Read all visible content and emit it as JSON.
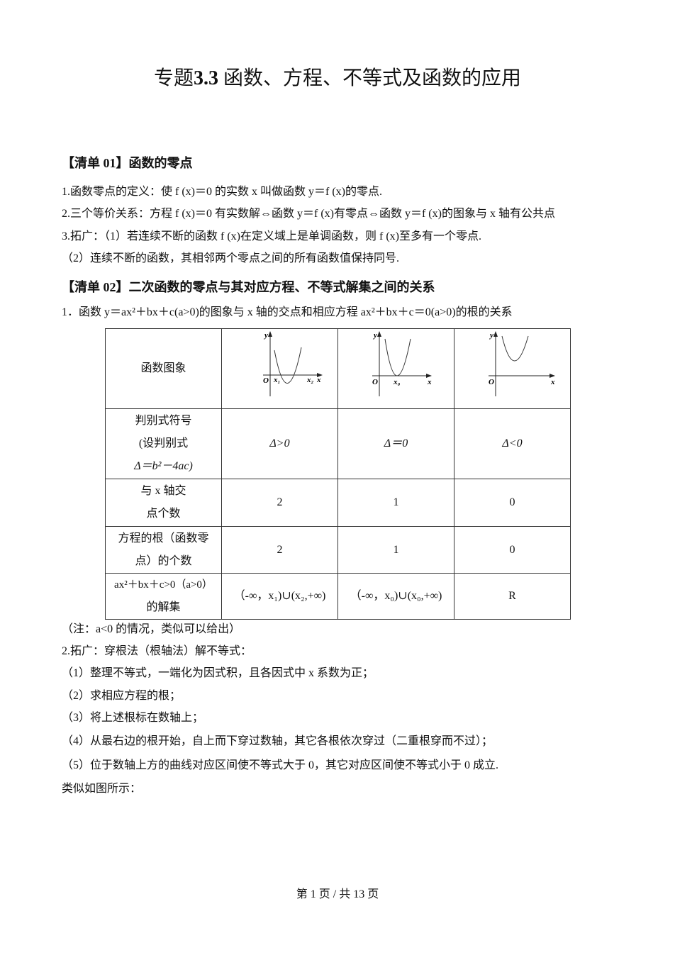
{
  "title": {
    "prefix": "专题",
    "num": "3.3",
    "text": "函数、方程、不等式及函数的应用"
  },
  "section1": {
    "heading": "【清单 01】函数的零点",
    "lines": [
      "1.函数零点的定义：使 f (x)＝0 的实数 x 叫做函数 y＝f (x)的零点.",
      "2.三个等价关系：方程 f (x)＝0 有实数解⇔函数 y＝f (x)有零点⇔函数 y＝f (x)的图象与 x 轴有公共点",
      "3.拓广：（1）若连续不断的函数 f (x)在定义域上是单调函数，则 f (x)至多有一个零点.",
      "（2）连续不断的函数，其相邻两个零点之间的所有函数值保持同号."
    ]
  },
  "section2": {
    "heading": "【清单 02】二次函数的零点与其对应方程、不等式解集之间的关系",
    "intro": "1．函数 y＝ax²＋bx＋c(a>0)的图象与 x 轴的交点和相应方程 ax²＋bx＋c＝0(a>0)的根的关系",
    "table": {
      "rows": [
        {
          "label": [
            "函数图象"
          ],
          "cells": [
            "",
            "",
            ""
          ]
        },
        {
          "label": [
            "判别式符号",
            "(设判别式",
            "Δ＝b²－4ac)"
          ],
          "cells": [
            "Δ>0",
            "Δ＝0",
            "Δ<0"
          ]
        },
        {
          "label": [
            "与 x 轴交",
            "点个数"
          ],
          "cells": [
            "2",
            "1",
            "0"
          ]
        },
        {
          "label": [
            "方程的根（函数零",
            "点）的个数"
          ],
          "cells": [
            "2",
            "1",
            "0"
          ]
        },
        {
          "label": [
            "ax²＋bx＋c>0（a>0）",
            "的解集"
          ],
          "cells": [
            "（-∞，x₁)∪(x₂,+∞)",
            "（-∞，x₀)∪(x₀,+∞)",
            "R"
          ]
        }
      ],
      "graph_labels": {
        "y": "y",
        "o": "O",
        "x": "x",
        "x1": "x₁",
        "x2": "x₂",
        "x0": "x₀"
      }
    },
    "note": "（注：a<0 的情况，类似可以给出）",
    "lines": [
      "2.拓广：穿根法（根轴法）解不等式：",
      "（1）整理不等式，一端化为因式积，且各因式中 x 系数为正；",
      "（2）求相应方程的根；",
      "（3）将上述根标在数轴上；",
      "（4）从最右边的根开始，自上而下穿过数轴，其它各根依次穿过（二重根穿而不过）；",
      "（5）位于数轴上方的曲线对应区间使不等式大于 0，其它对应区间使不等式小于 0 成立.",
      "类似如图所示："
    ]
  },
  "footer": "第 1 页 / 共 13 页"
}
